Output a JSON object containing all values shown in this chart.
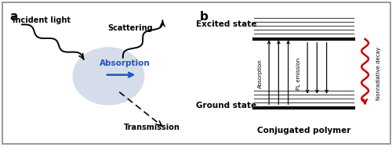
{
  "bg_color": "#ffffff",
  "panel_a_label": "a",
  "panel_b_label": "b",
  "incident_light_label": "Incident light",
  "scattering_label": "Scattering",
  "absorption_label_a": "Absorption",
  "transmission_label": "Transmission",
  "excited_state_label": "Excited state",
  "ground_state_label": "Ground state",
  "conjugated_polymer_label": "Conjugated polymer",
  "absorption_label_b": "Absorption",
  "pl_emission_label": "PL emission",
  "nonradiative_label": "Nonradiative decay",
  "circle_color": "#99aacc",
  "circle_alpha": 0.4,
  "absorption_text_color_a": "#2255bb",
  "red_color": "#cc0000",
  "dark_color": "#111111",
  "gray_color": "#555555"
}
